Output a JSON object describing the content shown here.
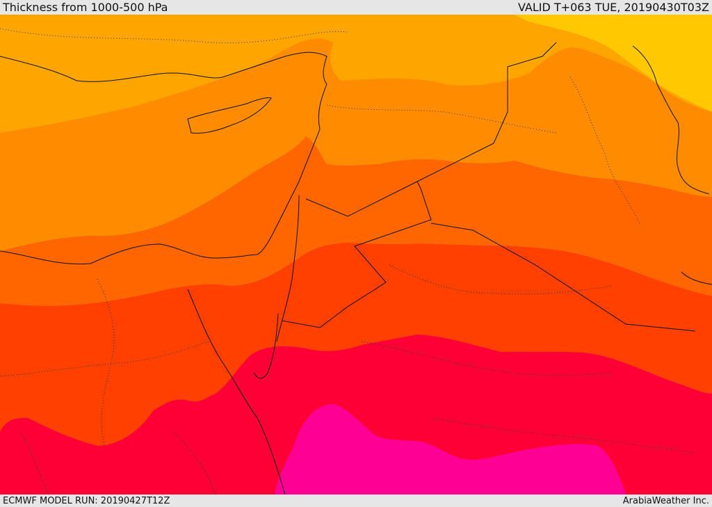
{
  "header": {
    "title": "Thickness from 1000-500 hPa",
    "valid": "VALID T+063 TUE, 20190430T03Z"
  },
  "footer": {
    "model_run": "ECMWF MODEL RUN: 20190427T12Z",
    "brand": "ArabiaWeather Inc."
  },
  "map": {
    "field": "1000-500 hPa thickness",
    "color_bands": [
      "#ffc800",
      "#ffa500",
      "#ff8c00",
      "#ff6600",
      "#ff4000",
      "#ff0036",
      "#ff0094"
    ]
  }
}
